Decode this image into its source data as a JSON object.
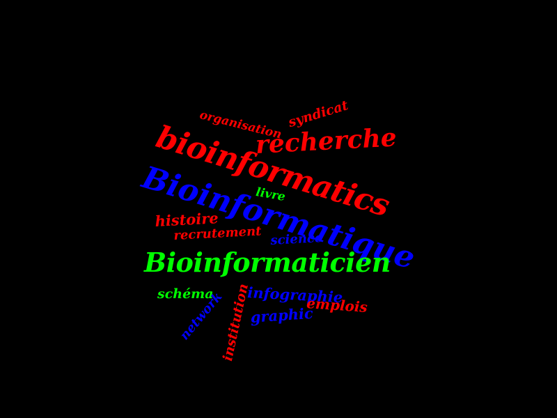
{
  "background": "#000000",
  "colors": {
    "red": "#ff0000",
    "blue": "#0000ff",
    "green": "#00ff00"
  },
  "words": {
    "bioinformatique": "Bioinformatique",
    "bioinformatics": "bioinformatics",
    "recherche": "recherche",
    "bioinformaticien": "Bioinformaticien",
    "organisation": "organisation",
    "syndicat": "syndicat",
    "livre": "livre",
    "histoire": "histoire",
    "recrutement": "recrutement",
    "science": "science",
    "schema": "schéma",
    "infographie": "infographie",
    "emplois": "emplois",
    "graphic": "graphic",
    "network": "network",
    "institution": "institution"
  }
}
